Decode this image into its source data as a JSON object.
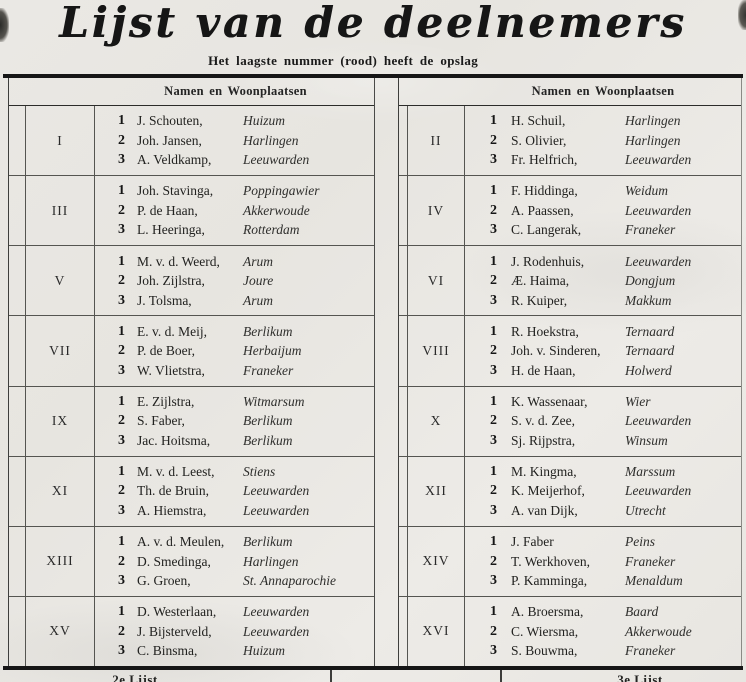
{
  "page": {
    "title": "Lijst van de deelnemers",
    "subtitle": "Het laagste nummer (rood) heeft de opslag"
  },
  "colors": {
    "paper": "#e9e7e2",
    "ink": "#1c1c1c",
    "thin_line": "#555551",
    "thick_rule": "#161616"
  },
  "tables": [
    {
      "header": "Namen en Woonplaatsen",
      "groups": [
        {
          "numeral": "I",
          "entries": [
            {
              "num": "1",
              "name": "J. Schouten,",
              "place": "Huizum"
            },
            {
              "num": "2",
              "name": "Joh. Jansen,",
              "place": "Harlingen"
            },
            {
              "num": "3",
              "name": "A. Veldkamp,",
              "place": "Leeuwarden"
            }
          ]
        },
        {
          "numeral": "III",
          "entries": [
            {
              "num": "1",
              "name": "Joh. Stavinga,",
              "place": "Poppingawier"
            },
            {
              "num": "2",
              "name": "P. de Haan,",
              "place": "Akkerwoude"
            },
            {
              "num": "3",
              "name": "L. Heeringa,",
              "place": "Rotterdam"
            }
          ]
        },
        {
          "numeral": "V",
          "entries": [
            {
              "num": "1",
              "name": "M. v. d. Weerd,",
              "place": "Arum"
            },
            {
              "num": "2",
              "name": "Joh. Zijlstra,",
              "place": "Joure"
            },
            {
              "num": "3",
              "name": "J. Tolsma,",
              "place": "Arum"
            }
          ]
        },
        {
          "numeral": "VII",
          "entries": [
            {
              "num": "1",
              "name": "E. v. d. Meij,",
              "place": "Berlikum"
            },
            {
              "num": "2",
              "name": "P. de Boer,",
              "place": "Herbaijum"
            },
            {
              "num": "3",
              "name": "W. Vlietstra,",
              "place": "Franeker"
            }
          ]
        },
        {
          "numeral": "IX",
          "entries": [
            {
              "num": "1",
              "name": "E. Zijlstra,",
              "place": "Witmarsum"
            },
            {
              "num": "2",
              "name": "S. Faber,",
              "place": "Berlikum"
            },
            {
              "num": "3",
              "name": "Jac. Hoitsma,",
              "place": "Berlikum"
            }
          ]
        },
        {
          "numeral": "XI",
          "entries": [
            {
              "num": "1",
              "name": "M. v. d. Leest,",
              "place": "Stiens"
            },
            {
              "num": "2",
              "name": "Th. de Bruin,",
              "place": "Leeuwarden"
            },
            {
              "num": "3",
              "name": "A. Hiemstra,",
              "place": "Leeuwarden"
            }
          ]
        },
        {
          "numeral": "XIII",
          "entries": [
            {
              "num": "1",
              "name": "A. v. d. Meulen,",
              "place": "Berlikum"
            },
            {
              "num": "2",
              "name": "D. Smedinga,",
              "place": "Harlingen"
            },
            {
              "num": "3",
              "name": "G. Groen,",
              "place": "St. Annaparochie"
            }
          ]
        },
        {
          "numeral": "XV",
          "entries": [
            {
              "num": "1",
              "name": "D. Westerlaan,",
              "place": "Leeuwarden"
            },
            {
              "num": "2",
              "name": "J. Bijsterveld,",
              "place": "Leeuwarden"
            },
            {
              "num": "3",
              "name": "C. Binsma,",
              "place": "Huizum"
            }
          ]
        }
      ]
    },
    {
      "header": "Namen en Woonplaatsen",
      "groups": [
        {
          "numeral": "II",
          "entries": [
            {
              "num": "1",
              "name": "H. Schuil,",
              "place": "Harlingen"
            },
            {
              "num": "2",
              "name": "S. Olivier,",
              "place": "Harlingen"
            },
            {
              "num": "3",
              "name": "Fr. Helfrich,",
              "place": "Leeuwarden"
            }
          ]
        },
        {
          "numeral": "IV",
          "entries": [
            {
              "num": "1",
              "name": "F. Hiddinga,",
              "place": "Weidum"
            },
            {
              "num": "2",
              "name": "A. Paassen,",
              "place": "Leeuwarden"
            },
            {
              "num": "3",
              "name": "C. Langerak,",
              "place": "Franeker"
            }
          ]
        },
        {
          "numeral": "VI",
          "entries": [
            {
              "num": "1",
              "name": "J. Rodenhuis,",
              "place": "Leeuwarden"
            },
            {
              "num": "2",
              "name": "Æ. Haima,",
              "place": "Dongjum"
            },
            {
              "num": "3",
              "name": "R. Kuiper,",
              "place": "Makkum"
            }
          ]
        },
        {
          "numeral": "VIII",
          "entries": [
            {
              "num": "1",
              "name": "R. Hoekstra,",
              "place": "Ternaard"
            },
            {
              "num": "2",
              "name": "Joh. v. Sinderen,",
              "place": "Ternaard"
            },
            {
              "num": "3",
              "name": "H. de Haan,",
              "place": "Holwerd"
            }
          ]
        },
        {
          "numeral": "X",
          "entries": [
            {
              "num": "1",
              "name": "K. Wassenaar,",
              "place": "Wier"
            },
            {
              "num": "2",
              "name": "S. v. d. Zee,",
              "place": "Leeuwarden"
            },
            {
              "num": "3",
              "name": "Sj. Rijpstra,",
              "place": "Winsum"
            }
          ]
        },
        {
          "numeral": "XII",
          "entries": [
            {
              "num": "1",
              "name": "M. Kingma,",
              "place": "Marssum"
            },
            {
              "num": "2",
              "name": "K. Meijerhof,",
              "place": "Leeuwarden"
            },
            {
              "num": "3",
              "name": "A. van Dijk,",
              "place": "Utrecht"
            }
          ]
        },
        {
          "numeral": "XIV",
          "entries": [
            {
              "num": "1",
              "name": "J. Faber",
              "place": "Peins"
            },
            {
              "num": "2",
              "name": "T. Werkhoven,",
              "place": "Franeker"
            },
            {
              "num": "3",
              "name": "P. Kamminga,",
              "place": "Menaldum"
            }
          ]
        },
        {
          "numeral": "XVI",
          "entries": [
            {
              "num": "1",
              "name": "A. Broersma,",
              "place": "Baard"
            },
            {
              "num": "2",
              "name": "C. Wiersma,",
              "place": "Akkerwoude"
            },
            {
              "num": "3",
              "name": "S. Bouwma,",
              "place": "Franeker"
            }
          ]
        }
      ]
    }
  ],
  "footer": {
    "left_label": "2e Lijst",
    "right_label": "3e Lijst"
  }
}
